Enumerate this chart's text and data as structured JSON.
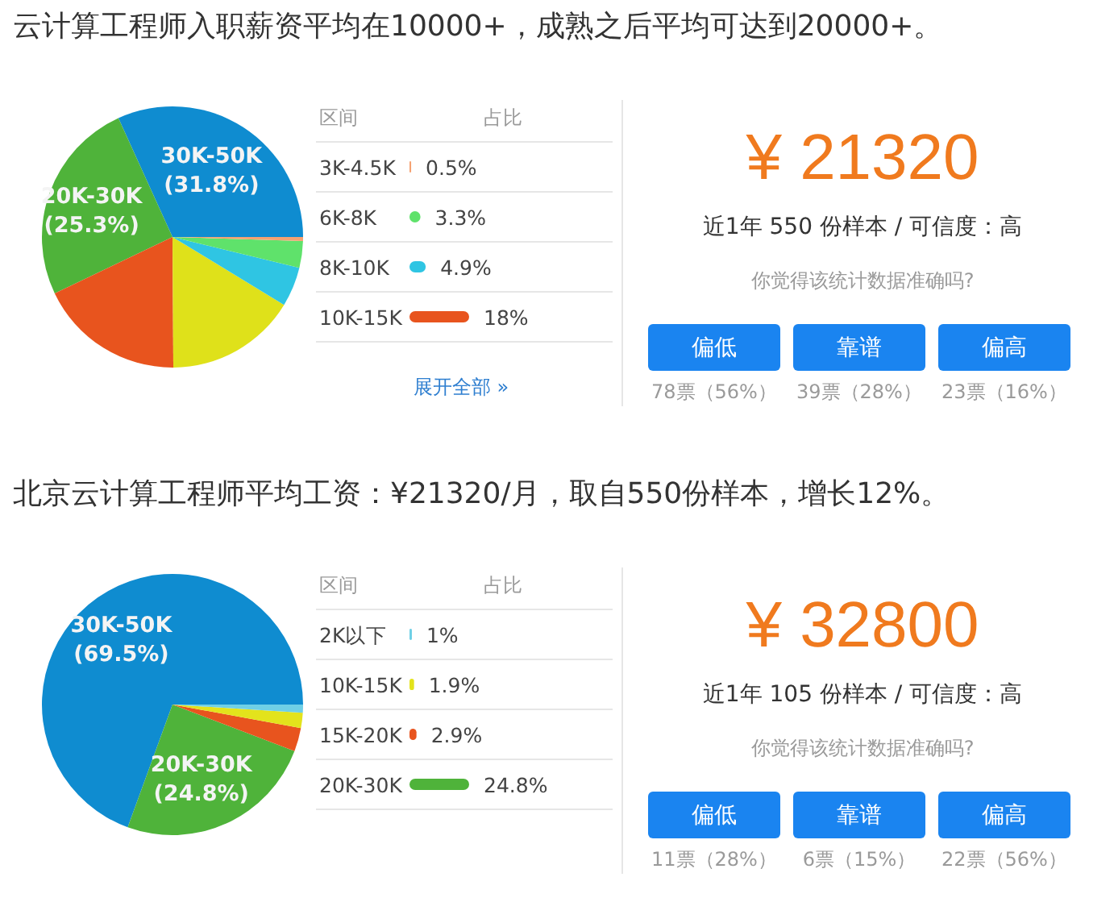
{
  "chart_data": [
    {
      "type": "pie",
      "title": "云计算工程师入职薪资平均在10000+，成熟之后平均可达到20000+。",
      "categories": [
        "30K-50K",
        "20K-30K",
        null,
        null,
        null,
        null,
        null
      ],
      "values": [
        31.8,
        25.3,
        18,
        16.2,
        4.9,
        3.3,
        0.5
      ],
      "colors": [
        "#0f8cd0",
        "#4fb33a",
        "#e8541e",
        "#dfe11a",
        "#2fc5e3",
        "#5fe26b",
        "#f5a272"
      ],
      "value_labels": [
        "(31.8%)",
        "(25.3%)",
        null,
        null,
        null,
        null,
        null
      ]
    },
    {
      "type": "bar",
      "orientation": "horizontal",
      "ylabel": "区间",
      "xlabel": "占比",
      "categories": [
        "3K-4.5K",
        "6K-8K",
        "8K-10K",
        "10K-15K"
      ],
      "values": [
        0.5,
        3.3,
        4.9,
        18
      ],
      "colors": [
        "#f5a272",
        "#5fe26b",
        "#2fc5e3",
        "#e8541e"
      ],
      "value_labels": [
        "0.5%",
        "3.3%",
        "4.9%",
        "18%"
      ],
      "annotations": [
        "展开全部 »"
      ]
    },
    {
      "type": "other",
      "title": "¥ 21320",
      "subtitle": "近1年 550 份样本 / 可信度：高",
      "annotations": [
        "你觉得该统计数据准确吗?"
      ],
      "categories": [
        "偏低",
        "靠谱",
        "偏高"
      ],
      "value_labels": [
        "78票（56%）",
        "39票（28%）",
        "23票（16%）"
      ]
    },
    {
      "type": "pie",
      "title": "北京云计算工程师平均工资：¥21320/月，取自550份样本，增长12%。",
      "categories": [
        "30K-50K",
        "20K-30K",
        null,
        null,
        null
      ],
      "values": [
        69.5,
        24.8,
        2.9,
        1.9,
        1
      ],
      "colors": [
        "#0f8cd0",
        "#4fb33a",
        "#e8541e",
        "#e3e31c",
        "#6fd0e6"
      ],
      "value_labels": [
        "(69.5%)",
        "(24.8%)",
        null,
        null,
        null
      ]
    },
    {
      "type": "bar",
      "orientation": "horizontal",
      "ylabel": "区间",
      "xlabel": "占比",
      "categories": [
        "2K以下",
        "10K-15K",
        "15K-20K",
        "20K-30K"
      ],
      "values": [
        1,
        1.9,
        2.9,
        24.8
      ],
      "colors": [
        "#6fd0e6",
        "#e3e31c",
        "#e8541e",
        "#4fb33a"
      ],
      "value_labels": [
        "1%",
        "1.9%",
        "2.9%",
        "24.8%"
      ]
    },
    {
      "type": "other",
      "title": "¥ 32800",
      "subtitle": "近1年 105 份样本 / 可信度：高",
      "annotations": [
        "你觉得该统计数据准确吗?"
      ],
      "categories": [
        "偏低",
        "靠谱",
        "偏高"
      ],
      "value_labels": [
        "11票（28%）",
        "6票（15%）",
        "22票（56%）"
      ]
    }
  ]
}
